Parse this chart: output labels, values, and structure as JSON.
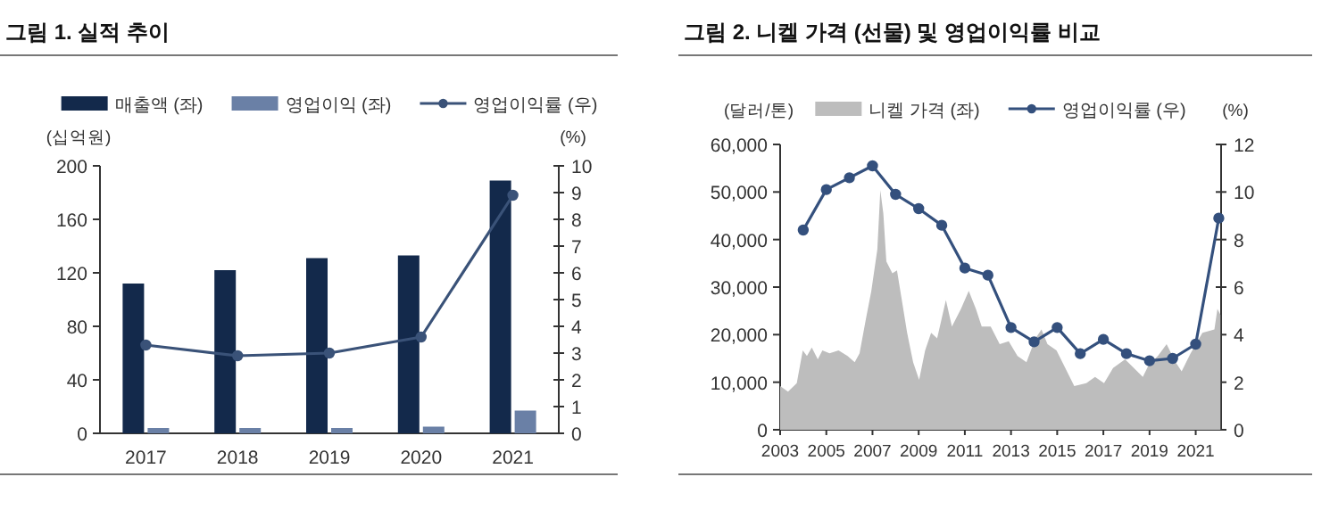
{
  "chart_data": [
    {
      "type": "bar",
      "title": "그림 1. 실적 추이",
      "ylabel": "(십억원)",
      "y2label": "(%)",
      "categories": [
        "2017",
        "2018",
        "2019",
        "2020",
        "2021"
      ],
      "ylim": [
        0,
        200
      ],
      "yticks": [
        0,
        40,
        80,
        120,
        160,
        200
      ],
      "y2lim": [
        0,
        10
      ],
      "y2ticks": [
        0,
        1,
        2,
        3,
        4,
        5,
        6,
        7,
        8,
        9,
        10
      ],
      "legend": "top",
      "series": [
        {
          "name": "매출액 (좌)",
          "color": "#13294b",
          "values": [
            112,
            122,
            131,
            133,
            189
          ]
        },
        {
          "name": "영업이익 (좌)",
          "color": "#6a80a6",
          "values": [
            4,
            4,
            4,
            5,
            17
          ]
        },
        {
          "name": "영업이익률 (우)",
          "type": "line",
          "axis": "y2",
          "marker": "circle",
          "color": "#3a5278",
          "values": [
            3.3,
            2.9,
            3.0,
            3.6,
            8.9
          ]
        }
      ]
    },
    {
      "type": "area",
      "title": "그림 2. 니켈 가격 (선물) 및 영업이익률 비교",
      "ylabel": "(달러/톤)",
      "y2label": "(%)",
      "xlim": [
        2003,
        2022.1
      ],
      "xticks": [
        2003,
        2005,
        2007,
        2009,
        2011,
        2013,
        2015,
        2017,
        2019,
        2021
      ],
      "ylim": [
        0,
        60000
      ],
      "yticks": [
        {
          "value": 0,
          "label": "0"
        },
        {
          "value": 10000,
          "label": "10,000"
        },
        {
          "value": 20000,
          "label": "20,000"
        },
        {
          "value": 30000,
          "label": "30,000"
        },
        {
          "value": 40000,
          "label": "40,000"
        },
        {
          "value": 50000,
          "label": "50,000"
        },
        {
          "value": 60000,
          "label": "60,000"
        }
      ],
      "y2lim": [
        0,
        12
      ],
      "y2ticks": [
        0,
        2,
        4,
        6,
        8,
        10,
        12
      ],
      "legend": "top",
      "series": [
        {
          "name": "니켈 가격 (좌)",
          "color": "#bdbdbd",
          "x": [
            2003.0,
            2003.34,
            2003.72,
            2003.98,
            2004.16,
            2004.37,
            2004.63,
            2004.83,
            2005.14,
            2005.53,
            2005.92,
            2006.23,
            2006.44,
            2006.7,
            2006.95,
            2007.21,
            2007.34,
            2007.47,
            2007.6,
            2007.86,
            2008.06,
            2008.25,
            2008.5,
            2008.76,
            2009.02,
            2009.28,
            2009.54,
            2009.8,
            2010.18,
            2010.44,
            2010.83,
            2011.17,
            2011.48,
            2011.73,
            2012.12,
            2012.51,
            2012.9,
            2013.28,
            2013.67,
            2014.06,
            2014.32,
            2014.58,
            2014.97,
            2015.35,
            2015.74,
            2016.26,
            2016.64,
            2017.03,
            2017.42,
            2017.94,
            2018.32,
            2018.71,
            2018.97,
            2019.36,
            2019.74,
            2020.13,
            2020.39,
            2020.78,
            2021.29,
            2021.81,
            2021.94,
            2022.07
          ],
          "values": [
            9200,
            8000,
            9800,
            16700,
            15500,
            17300,
            14800,
            16700,
            16100,
            16700,
            15500,
            14200,
            16100,
            22900,
            29200,
            37900,
            50400,
            45400,
            35400,
            32900,
            33500,
            27900,
            20400,
            14200,
            10500,
            16700,
            20400,
            19200,
            27300,
            21700,
            25400,
            29200,
            25400,
            21700,
            21700,
            18000,
            18600,
            15500,
            14200,
            19200,
            21100,
            18000,
            16700,
            13000,
            9200,
            9800,
            11100,
            9800,
            13000,
            14800,
            13000,
            11100,
            13700,
            15500,
            18000,
            14200,
            12300,
            16100,
            20400,
            21100,
            25400,
            24200
          ]
        },
        {
          "name": "영업이익률 (우)",
          "type": "line",
          "axis": "y2",
          "marker": "circle",
          "color": "#34507d",
          "x": [
            2004,
            2005,
            2006,
            2007,
            2008,
            2009,
            2010,
            2011,
            2012,
            2013,
            2014,
            2015,
            2016,
            2017,
            2018,
            2019,
            2020,
            2021,
            2022
          ],
          "values": [
            8.4,
            10.1,
            10.6,
            11.1,
            9.9,
            9.3,
            8.6,
            6.8,
            6.5,
            4.3,
            3.7,
            4.3,
            3.2,
            3.8,
            3.2,
            2.9,
            3.0,
            3.6,
            8.9
          ]
        }
      ]
    }
  ]
}
